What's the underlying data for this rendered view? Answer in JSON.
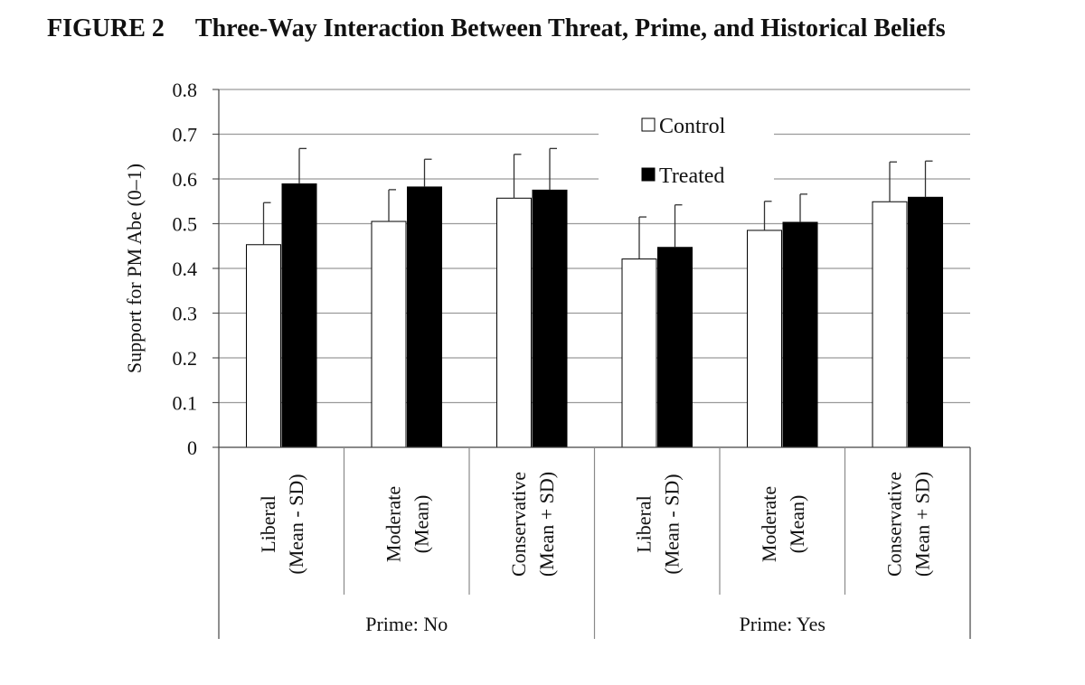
{
  "figure": {
    "number": "FIGURE 2",
    "title": "Three-Way Interaction Between Threat, Prime, and Historical Beliefs"
  },
  "chart_data": {
    "type": "bar",
    "ylabel": "Support for PM Abe (0–1)",
    "ylim": [
      0,
      0.8
    ],
    "yticks": [
      "0",
      "0.1",
      "0.2",
      "0.3",
      "0.4",
      "0.5",
      "0.6",
      "0.7",
      "0.8"
    ],
    "grid": true,
    "error_bars": true,
    "legend_position": "top-right",
    "groups": [
      {
        "label": "Prime: No",
        "categories": [
          {
            "lines": [
              "Liberal",
              "(Mean - SD)"
            ]
          },
          {
            "lines": [
              "Moderate",
              "(Mean)"
            ]
          },
          {
            "lines": [
              "Conservative",
              "(Mean + SD)"
            ]
          }
        ]
      },
      {
        "label": "Prime: Yes",
        "categories": [
          {
            "lines": [
              "Liberal",
              "(Mean - SD)"
            ]
          },
          {
            "lines": [
              "Moderate",
              "(Mean)"
            ]
          },
          {
            "lines": [
              "Conservative",
              "(Mean + SD)"
            ]
          }
        ]
      }
    ],
    "series": [
      {
        "name": "Control",
        "color": "#ffffff",
        "values": [
          0.453,
          0.505,
          0.557,
          0.421,
          0.485,
          0.549
        ],
        "error_upper": [
          0.547,
          0.576,
          0.655,
          0.515,
          0.55,
          0.638
        ]
      },
      {
        "name": "Treated",
        "color": "#000000",
        "values": [
          0.589,
          0.582,
          0.575,
          0.447,
          0.503,
          0.559
        ],
        "error_upper": [
          0.668,
          0.644,
          0.668,
          0.542,
          0.566,
          0.64
        ]
      }
    ]
  }
}
